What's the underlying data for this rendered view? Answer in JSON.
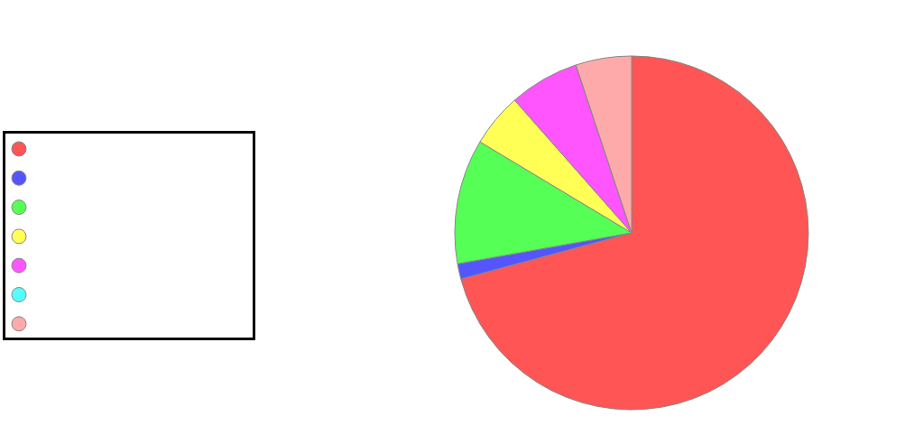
{
  "chart_data": {
    "type": "pie",
    "categories": [
      null,
      null,
      null,
      null,
      null,
      null,
      null
    ],
    "values": [
      70.8,
      1.4,
      11.4,
      4.9,
      6.4,
      0,
      5.1
    ],
    "colors": [
      "#ff5555",
      "#5555ff",
      "#55ff55",
      "#ffff55",
      "#ff55ff",
      "#55ffff",
      "#ffaaaa"
    ]
  }
}
